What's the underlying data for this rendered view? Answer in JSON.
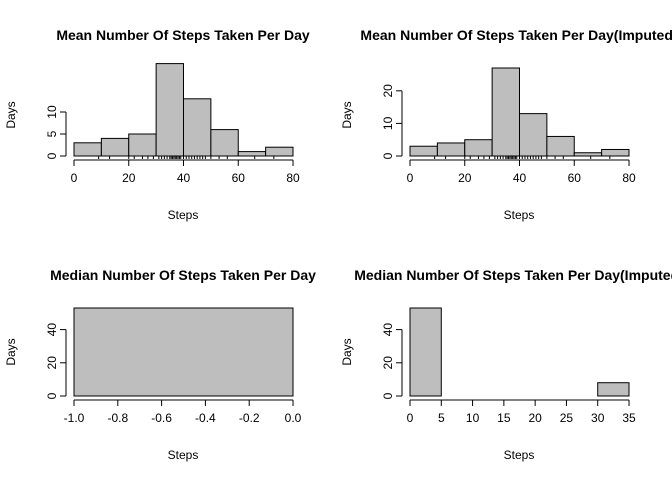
{
  "chart_data": [
    {
      "id": "mean",
      "type": "bar",
      "title": "Mean Number Of Steps Taken Per Day",
      "xlabel": "Steps",
      "ylabel": "Days",
      "xlim": [
        0,
        80
      ],
      "ylim": [
        0,
        20
      ],
      "x_ticks": [
        0,
        20,
        40,
        60,
        80
      ],
      "y_ticks": [
        0,
        5,
        10
      ],
      "bins": [
        [
          0,
          10
        ],
        [
          10,
          20
        ],
        [
          20,
          30
        ],
        [
          30,
          40
        ],
        [
          40,
          50
        ],
        [
          50,
          60
        ],
        [
          60,
          70
        ],
        [
          70,
          80
        ]
      ],
      "values": [
        3,
        4,
        5,
        21,
        13,
        6,
        1,
        2
      ],
      "rug": [
        9,
        13,
        20,
        22,
        25,
        27,
        29,
        31,
        32,
        33,
        34,
        35,
        35.5,
        36,
        36.5,
        37,
        37.5,
        38,
        38.5,
        39,
        40,
        41,
        42,
        43,
        44,
        45,
        46,
        47,
        48,
        50,
        53,
        56,
        66,
        73
      ]
    },
    {
      "id": "mean-imputed",
      "type": "bar",
      "title": "Mean Number Of Steps Taken Per Day(Imputed)",
      "xlabel": "Steps",
      "ylabel": "Days",
      "xlim": [
        0,
        80
      ],
      "ylim": [
        0,
        27
      ],
      "x_ticks": [
        0,
        20,
        40,
        60,
        80
      ],
      "y_ticks": [
        0,
        10,
        20
      ],
      "bins": [
        [
          0,
          10
        ],
        [
          10,
          20
        ],
        [
          20,
          30
        ],
        [
          30,
          40
        ],
        [
          40,
          50
        ],
        [
          50,
          60
        ],
        [
          60,
          70
        ],
        [
          70,
          80
        ]
      ],
      "values": [
        3,
        4,
        5,
        27,
        13,
        6,
        1,
        2
      ],
      "rug": [
        9,
        13,
        20,
        22,
        25,
        27,
        29,
        31,
        32,
        33,
        34,
        35,
        35.5,
        36,
        36.5,
        37,
        37.5,
        38,
        38.5,
        39,
        40,
        41,
        42,
        43,
        44,
        45,
        46,
        47,
        48,
        50,
        53,
        56,
        66,
        73
      ]
    },
    {
      "id": "median",
      "type": "bar",
      "title": "Median Number Of Steps Taken Per Day",
      "xlabel": "Steps",
      "ylabel": "Days",
      "xlim": [
        -1.0,
        0.0
      ],
      "ylim": [
        0,
        53
      ],
      "x_ticks": [
        -1.0,
        -0.8,
        -0.6,
        -0.4,
        -0.2,
        0.0
      ],
      "y_ticks": [
        0,
        20,
        40
      ],
      "bins": [
        [
          -1.0,
          0.0
        ]
      ],
      "values": [
        53
      ]
    },
    {
      "id": "median-imputed",
      "type": "bar",
      "title": "Median Number Of Steps Taken Per Day(Imputed)",
      "xlabel": "Steps",
      "ylabel": "Days",
      "xlim": [
        0,
        35
      ],
      "ylim": [
        0,
        53
      ],
      "x_ticks": [
        0,
        5,
        10,
        15,
        20,
        25,
        30,
        35
      ],
      "y_ticks": [
        0,
        20,
        40
      ],
      "bins": [
        [
          0,
          5
        ],
        [
          5,
          10
        ],
        [
          10,
          15
        ],
        [
          15,
          20
        ],
        [
          20,
          25
        ],
        [
          25,
          30
        ],
        [
          30,
          35
        ]
      ],
      "values": [
        53,
        0,
        0,
        0,
        0,
        0,
        8
      ]
    }
  ]
}
